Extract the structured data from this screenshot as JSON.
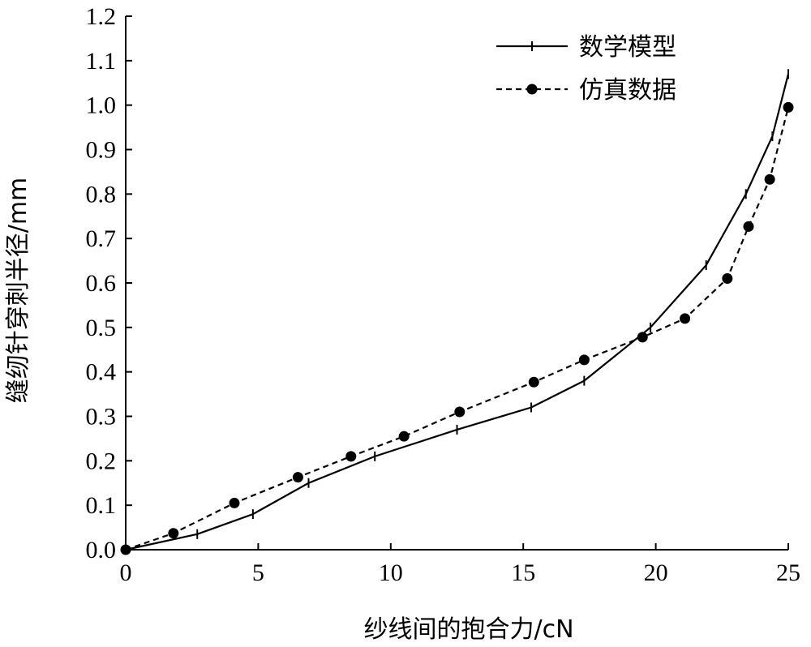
{
  "chart_data": {
    "type": "line",
    "xlabel": "纱线间的抱合力/cN",
    "ylabel": "缝纫针穿刺半径/mm",
    "xlim": [
      0,
      25
    ],
    "ylim": [
      0,
      1.2
    ],
    "x_ticks": [
      "0",
      "5",
      "10",
      "15",
      "20",
      "25"
    ],
    "y_ticks": [
      "0.0",
      "0.1",
      "0.2",
      "0.3",
      "0.4",
      "0.5",
      "0.6",
      "0.7",
      "0.8",
      "0.9",
      "1.0",
      "1.1",
      "1.2"
    ],
    "grid": false,
    "legend_position": "top-right",
    "series": [
      {
        "name": "数学模型",
        "style": "solid",
        "marker": "tick",
        "color": "#000000",
        "x": [
          0,
          2.7,
          4.8,
          6.9,
          9.4,
          12.5,
          15.3,
          17.3,
          19.8,
          21.9,
          23.4,
          24.4,
          25.0
        ],
        "y": [
          0,
          0.035,
          0.08,
          0.15,
          0.21,
          0.27,
          0.32,
          0.38,
          0.5,
          0.64,
          0.8,
          0.93,
          1.07
        ]
      },
      {
        "name": "仿真数据",
        "style": "dashed",
        "marker": "circle",
        "color": "#000000",
        "x": [
          0,
          1.8,
          4.1,
          6.5,
          8.5,
          10.5,
          12.6,
          15.4,
          17.3,
          19.5,
          21.1,
          22.7,
          23.5,
          24.3,
          25.0
        ],
        "y": [
          0,
          0.037,
          0.105,
          0.163,
          0.21,
          0.255,
          0.31,
          0.377,
          0.427,
          0.478,
          0.52,
          0.61,
          0.727,
          0.833,
          0.995
        ]
      }
    ]
  }
}
